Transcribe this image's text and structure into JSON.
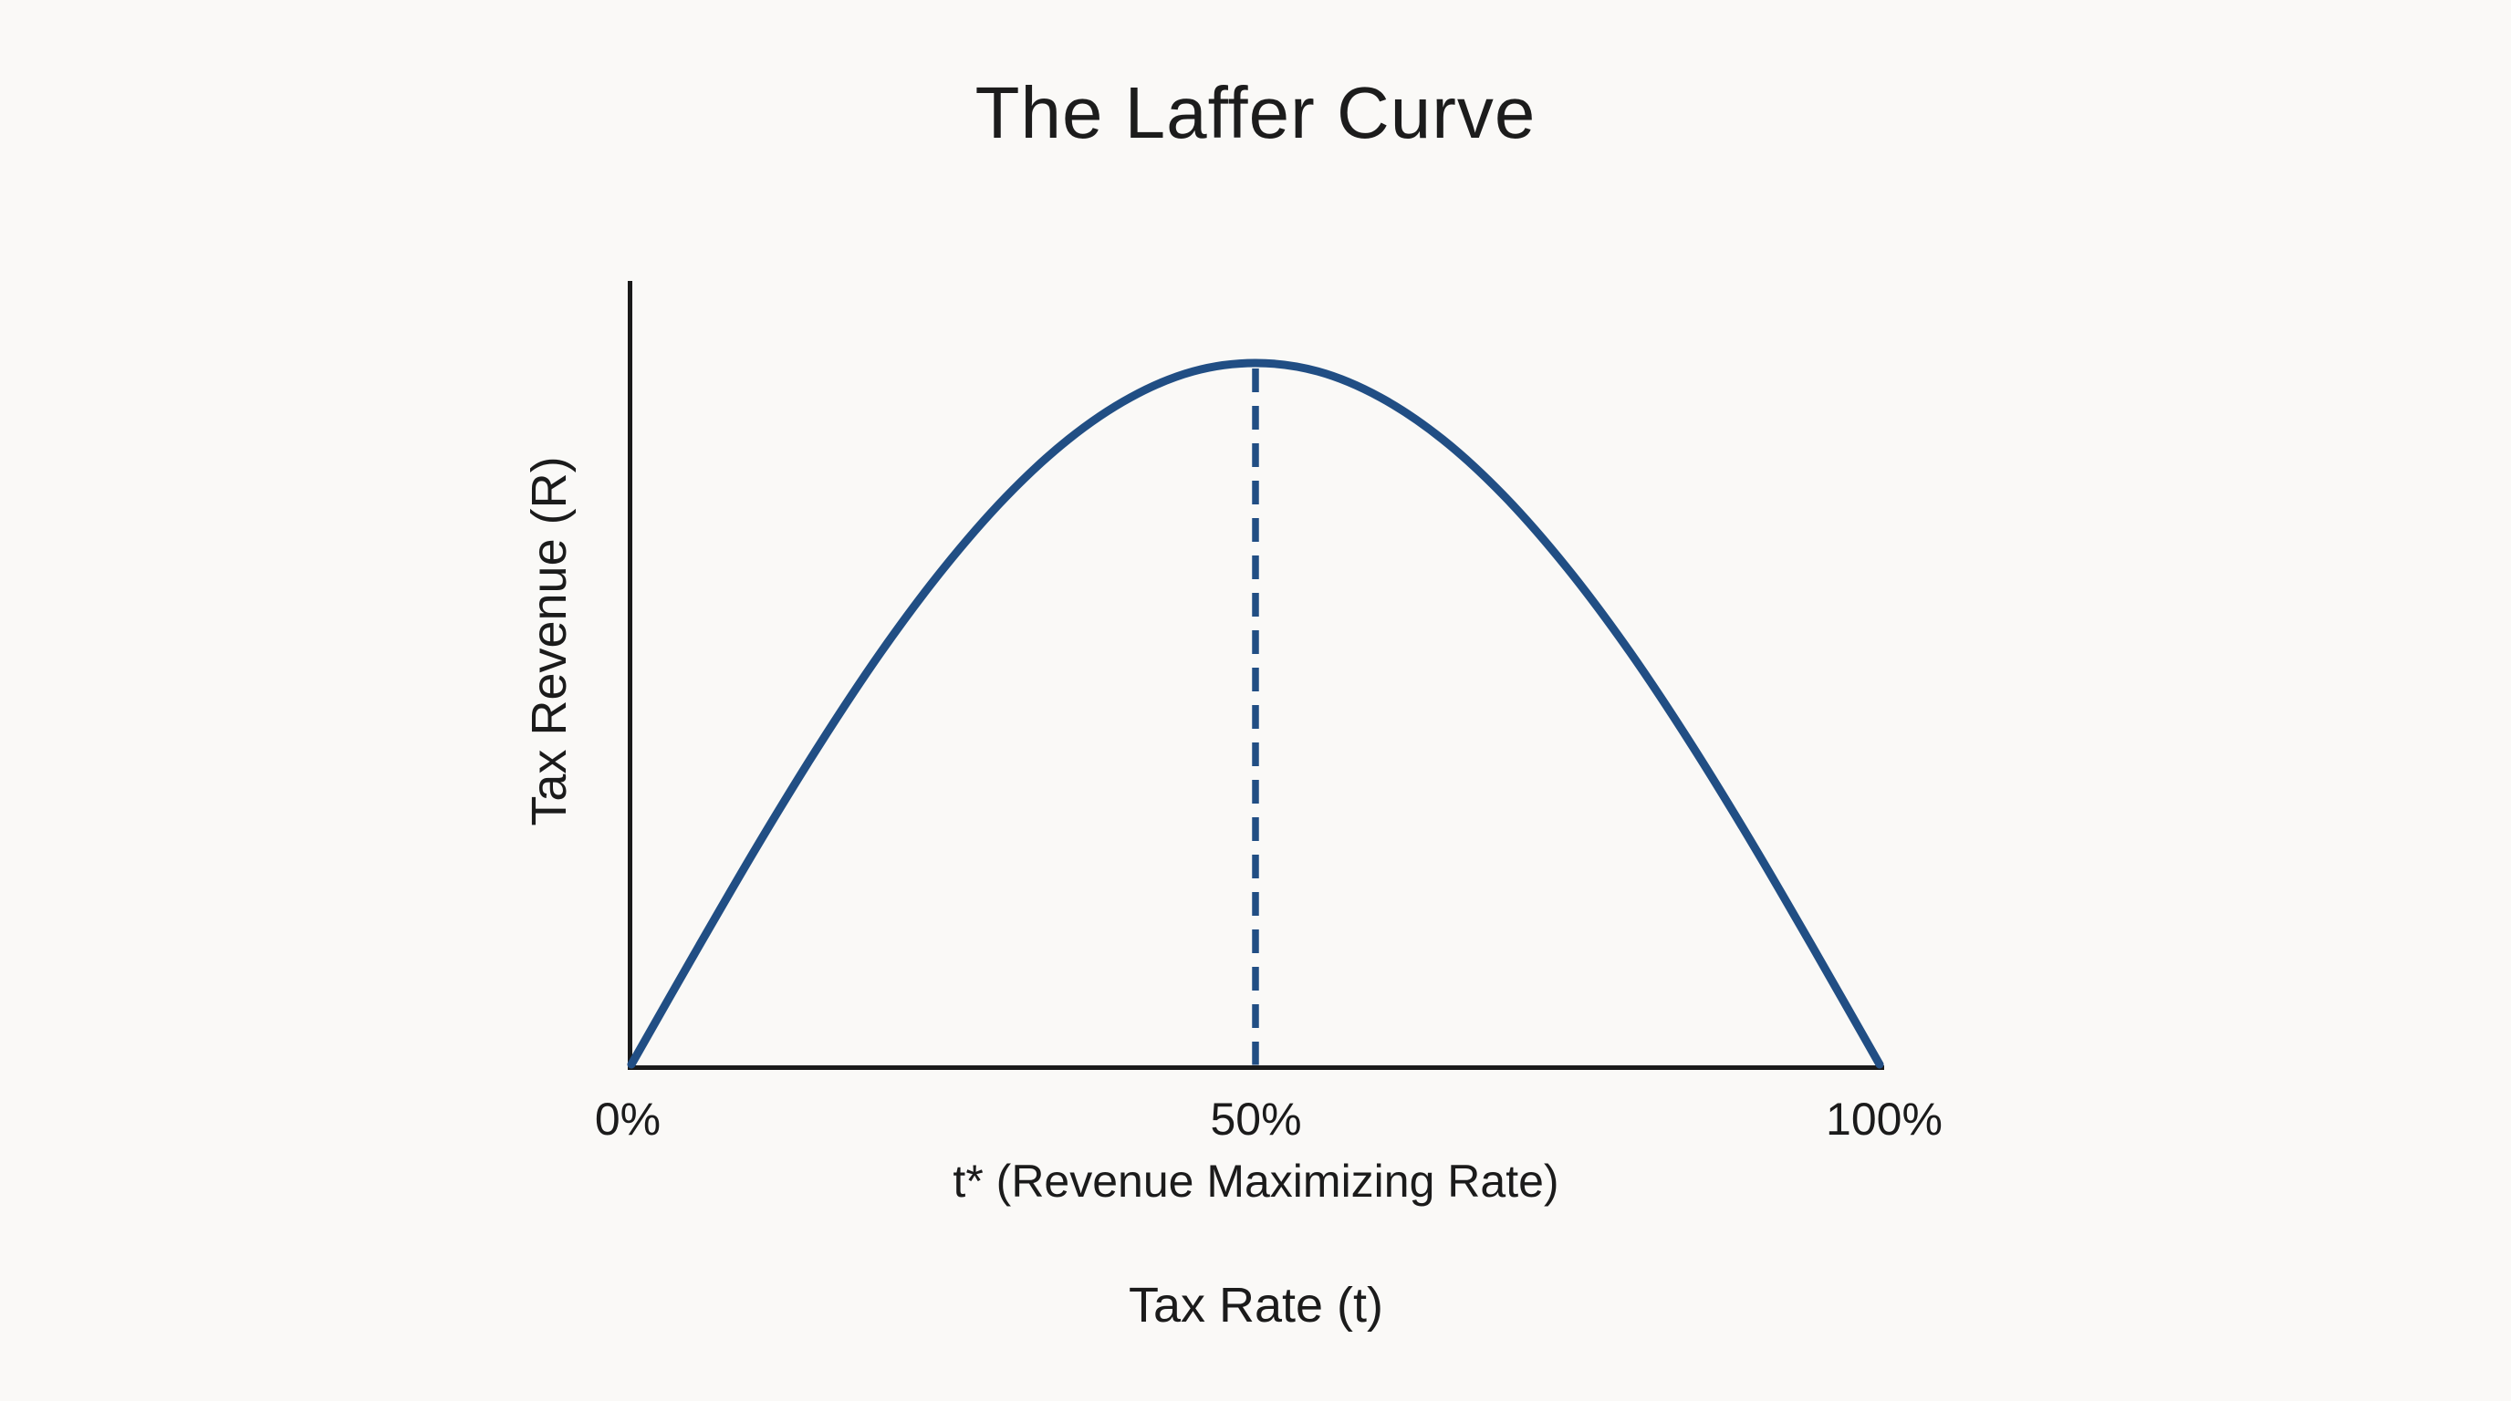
{
  "chart": {
    "colors": {
      "curve": "#214e84",
      "dashed_line": "#214e84",
      "axis": "#1a1a1a",
      "text": "#1b1b1b",
      "background": "#faf9f7"
    }
  },
  "chart_data": {
    "type": "line",
    "title": "The Laffer Curve",
    "xlabel": "Tax Rate (t)",
    "ylabel": "Tax Revenue (R)",
    "xlim": [
      0,
      100
    ],
    "ylim": [
      0,
      1
    ],
    "grid": false,
    "legend": false,
    "x_ticks": [
      "0%",
      "50%",
      "100%"
    ],
    "x_tick_values": [
      0,
      50,
      100
    ],
    "series": [
      {
        "name": "Tax Revenue",
        "x": [
          0,
          5,
          10,
          15,
          20,
          25,
          30,
          35,
          40,
          45,
          50,
          55,
          60,
          65,
          70,
          75,
          80,
          85,
          90,
          95,
          100
        ],
        "y": [
          0,
          0.156,
          0.309,
          0.454,
          0.588,
          0.707,
          0.809,
          0.891,
          0.951,
          0.988,
          1.0,
          0.988,
          0.951,
          0.891,
          0.809,
          0.707,
          0.588,
          0.454,
          0.309,
          0.156,
          0
        ]
      }
    ],
    "annotations": [
      {
        "type": "vline",
        "x": 50,
        "y_from": 0,
        "y_to": 1,
        "style": "dashed",
        "label": "t* (Revenue Maximizing Rate)"
      }
    ],
    "peak": {
      "x": 50,
      "y": 1.0
    }
  }
}
